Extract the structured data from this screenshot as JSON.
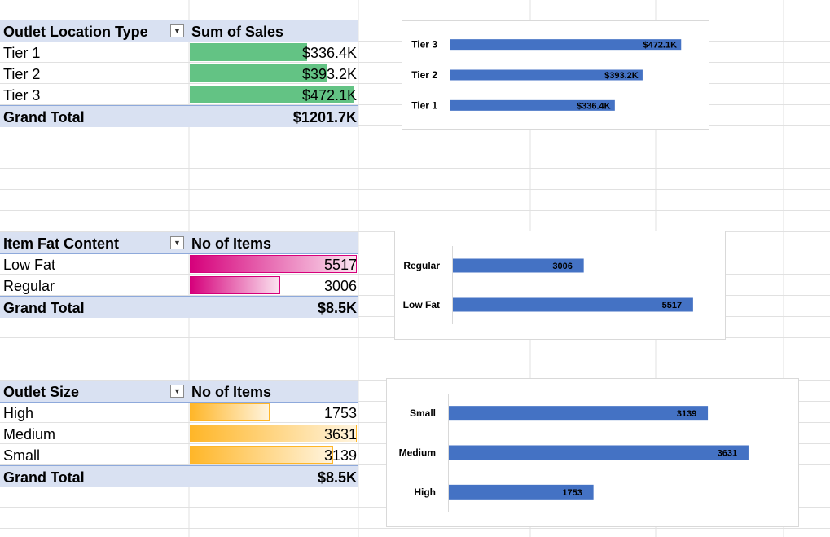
{
  "pivots": {
    "location": {
      "row_label": "Outlet Location Type",
      "value_label": "Sum of Sales",
      "rows": [
        {
          "label": "Tier 1",
          "value": "$336.4K",
          "bar_pct": 0.7
        },
        {
          "label": "Tier 2",
          "value": "$393.2K",
          "bar_pct": 0.82
        },
        {
          "label": "Tier 3",
          "value": "$472.1K",
          "bar_pct": 0.98
        }
      ],
      "total_label": "Grand Total",
      "total_value": "$1201.7K",
      "bar_color": "#63c384"
    },
    "fat": {
      "row_label": "Item Fat Content",
      "value_label": "No of Items",
      "rows": [
        {
          "label": "Low Fat",
          "value": "5517",
          "bar_pct": 1.0
        },
        {
          "label": "Regular",
          "value": "3006",
          "bar_pct": 0.54
        }
      ],
      "total_label": "Grand Total",
      "total_value": "$8.5K",
      "bar_color": "#d6007b"
    },
    "size": {
      "row_label": "Outlet Size",
      "value_label": "No of Items",
      "rows": [
        {
          "label": "High",
          "value": "1753",
          "bar_pct": 0.48
        },
        {
          "label": "Medium",
          "value": "3631",
          "bar_pct": 1.0
        },
        {
          "label": "Small",
          "value": "3139",
          "bar_pct": 0.86
        }
      ],
      "total_label": "Grand Total",
      "total_value": "$8.5K",
      "bar_color": "#ffb628"
    }
  },
  "chart_data": [
    {
      "type": "bar",
      "orientation": "horizontal",
      "categories": [
        "Tier 3",
        "Tier 2",
        "Tier 1"
      ],
      "values": [
        472.1,
        393.2,
        336.4
      ],
      "value_labels": [
        "$472.1K",
        "$393.2K",
        "$336.4K"
      ],
      "xlim": [
        0,
        500
      ],
      "grid": false,
      "legend": "none",
      "bar_color": "#4472c4"
    },
    {
      "type": "bar",
      "orientation": "horizontal",
      "categories": [
        "Regular",
        "Low Fat"
      ],
      "values": [
        3006,
        5517
      ],
      "value_labels": [
        "3006",
        "5517"
      ],
      "xlim": [
        0,
        5800
      ],
      "grid": false,
      "legend": "none",
      "bar_color": "#4472c4"
    },
    {
      "type": "bar",
      "orientation": "horizontal",
      "categories": [
        "Small",
        "Medium",
        "High"
      ],
      "values": [
        3139,
        3631,
        1753
      ],
      "value_labels": [
        "3139",
        "3631",
        "1753"
      ],
      "xlim": [
        0,
        3750
      ],
      "grid": false,
      "legend": "none",
      "bar_color": "#4472c4"
    }
  ]
}
